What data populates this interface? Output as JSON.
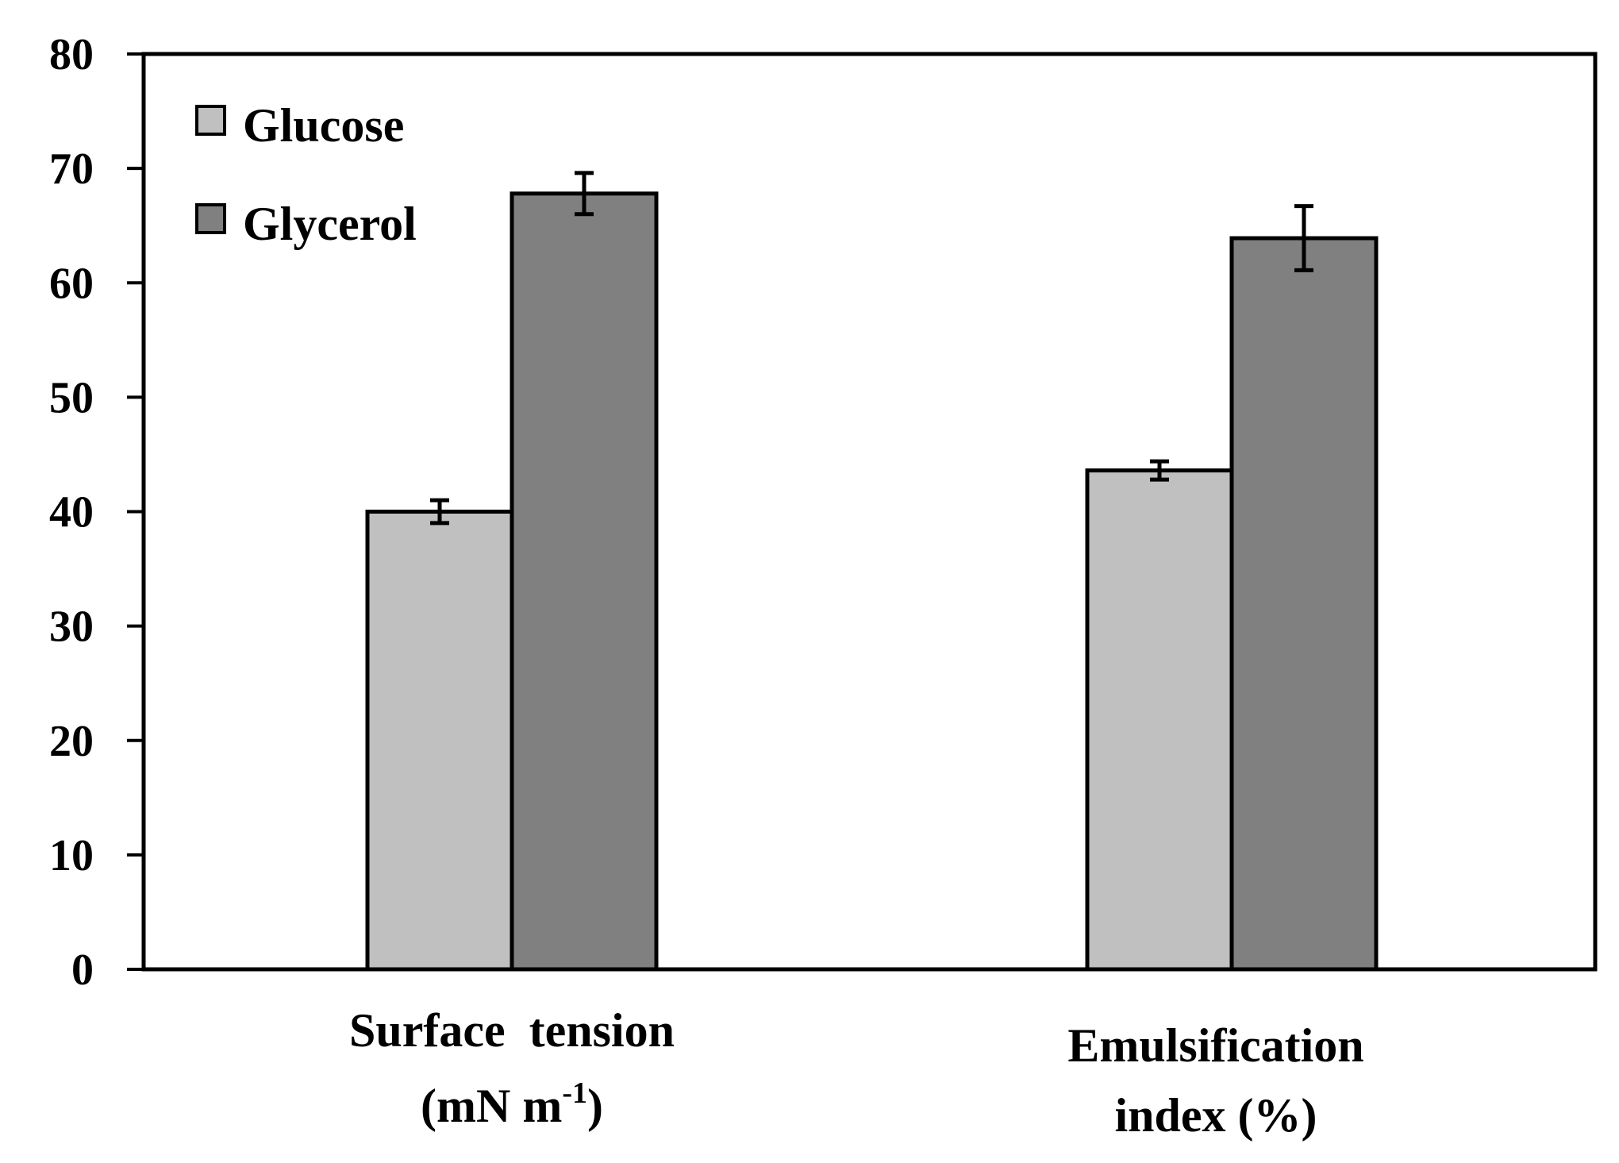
{
  "chart_data": {
    "type": "bar",
    "title": "",
    "xlabel": "",
    "ylabel": "",
    "ylim": [
      0,
      80
    ],
    "yticks": [
      0,
      10,
      20,
      30,
      40,
      50,
      60,
      70,
      80
    ],
    "grid": false,
    "legend_position": "top-left",
    "categories": [
      {
        "line1": "Surface  tension",
        "line2_main": "(mN m",
        "line2_sup": "-1",
        "line2_end": ")"
      },
      {
        "line1": "Emulsification",
        "line2_main": "index (%)",
        "line2_sup": "",
        "line2_end": ""
      }
    ],
    "series": [
      {
        "name": "Glucose",
        "color": "#c0c0c0",
        "values": [
          40,
          43.6
        ],
        "errors": [
          1.0,
          0.8
        ]
      },
      {
        "name": "Glycerol",
        "color": "#808080",
        "values": [
          67.8,
          63.9
        ],
        "errors": [
          1.8,
          2.8
        ]
      }
    ]
  }
}
